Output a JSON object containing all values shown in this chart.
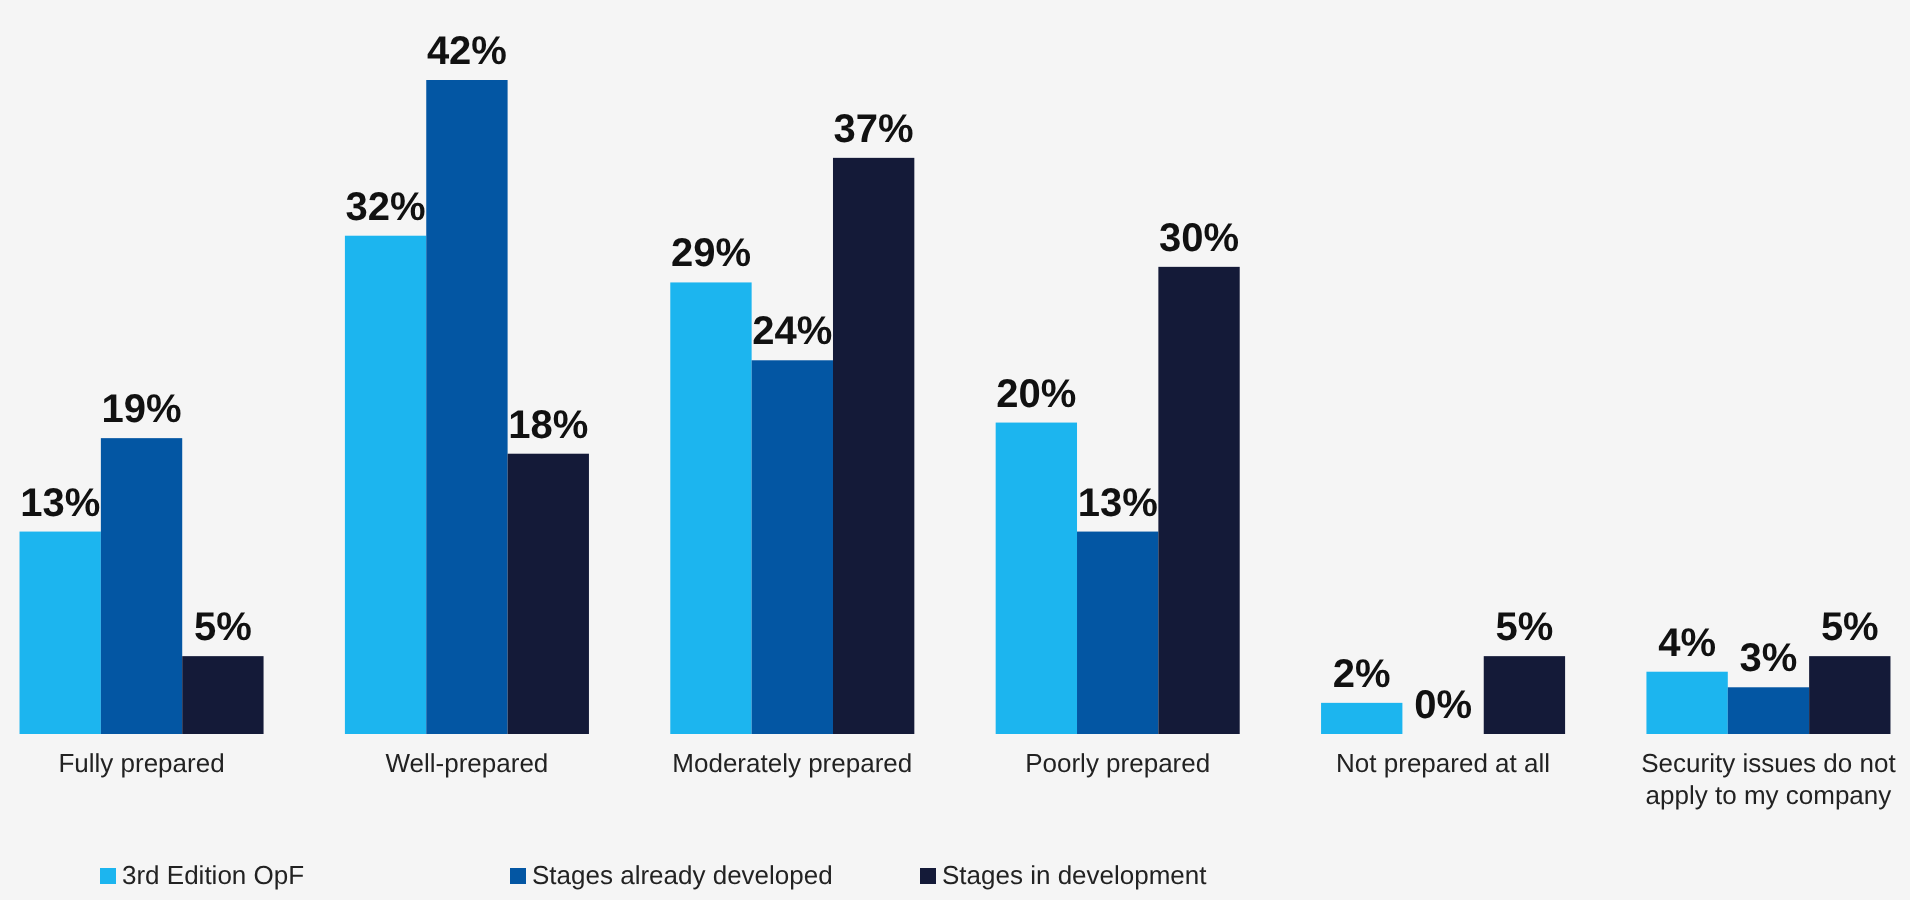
{
  "chart_data": {
    "type": "bar",
    "categories": [
      "Fully prepared",
      "Well-prepared",
      "Moderately prepared",
      "Poorly prepared",
      "Not prepared at all",
      "Security issues do not apply to my company"
    ],
    "series": [
      {
        "name": "3rd Edition OpF",
        "color": "#1cb5ef",
        "values": [
          13,
          32,
          29,
          20,
          2,
          4
        ],
        "value_labels": [
          "13%",
          "32%",
          "29%",
          "20%",
          "2%",
          "4%"
        ]
      },
      {
        "name": "Stages already developed",
        "color": "#0356a3",
        "values": [
          19,
          42,
          24,
          13,
          0,
          3
        ],
        "value_labels": [
          "19%",
          "42%",
          "24%",
          "13%",
          "0%",
          "3%"
        ]
      },
      {
        "name": "Stages in development",
        "color": "#141a38",
        "values": [
          5,
          18,
          37,
          30,
          5,
          5
        ],
        "value_labels": [
          "5%",
          "18%",
          "37%",
          "30%",
          "5%",
          "5%"
        ]
      }
    ],
    "legend": "bottom left"
  }
}
